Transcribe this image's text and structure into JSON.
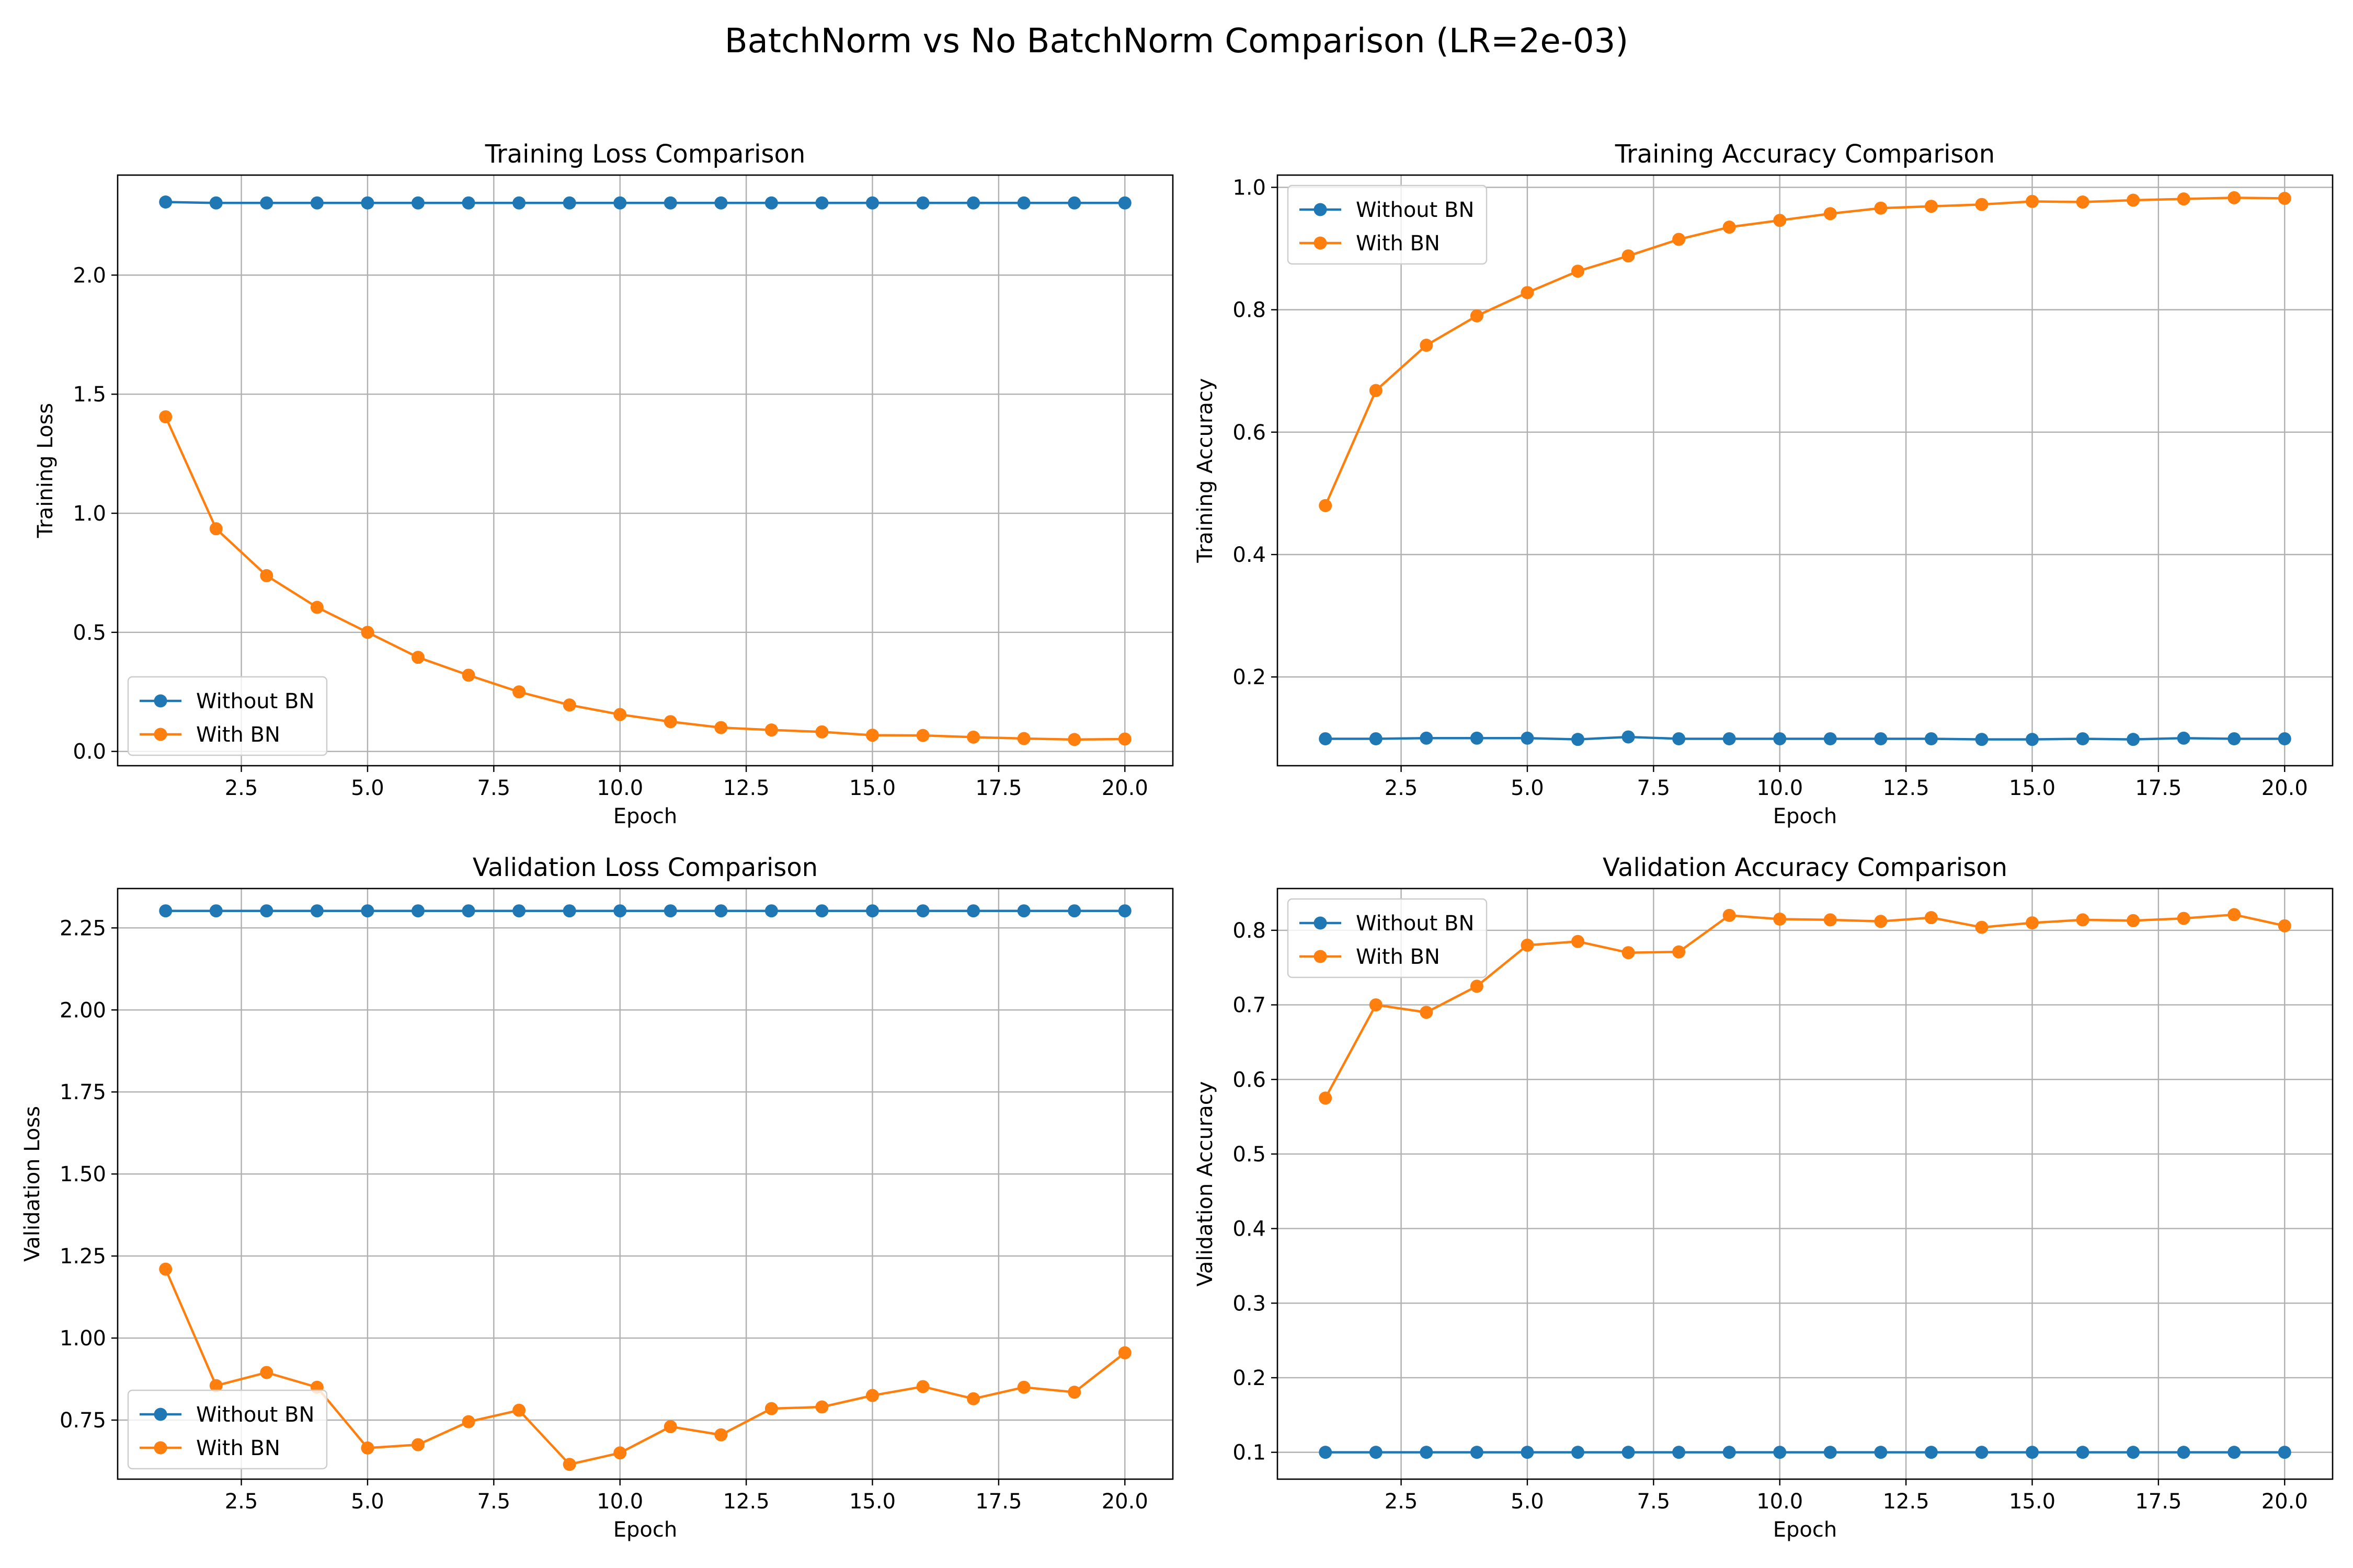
{
  "figure": {
    "title": "BatchNorm vs No BatchNorm Comparison (LR=2e-03)"
  },
  "colors": {
    "without_bn": "#1f77b4",
    "with_bn": "#ff7f0e",
    "grid": "#b0b0b0"
  },
  "chart_data": [
    {
      "type": "line",
      "title": "Training Loss Comparison",
      "xlabel": "Epoch",
      "ylabel": "Training Loss",
      "xlim": [
        0.05,
        20.95
      ],
      "ylim": [
        -0.06,
        2.42
      ],
      "xticks": [
        2.5,
        5.0,
        7.5,
        10.0,
        12.5,
        15.0,
        17.5,
        20.0
      ],
      "xtick_labels": [
        "2.5",
        "5.0",
        "7.5",
        "10.0",
        "12.5",
        "15.0",
        "17.5",
        "20.0"
      ],
      "yticks": [
        0.0,
        0.5,
        1.0,
        1.5,
        2.0
      ],
      "ytick_labels": [
        "0.0",
        "0.5",
        "1.0",
        "1.5",
        "2.0"
      ],
      "grid": true,
      "legend": "lower-left",
      "x": [
        1,
        2,
        3,
        4,
        5,
        6,
        7,
        8,
        9,
        10,
        11,
        12,
        13,
        14,
        15,
        16,
        17,
        18,
        19,
        20
      ],
      "series": [
        {
          "name": "Without BN",
          "values": [
            2.307,
            2.303,
            2.303,
            2.303,
            2.303,
            2.303,
            2.303,
            2.303,
            2.303,
            2.303,
            2.303,
            2.303,
            2.303,
            2.303,
            2.303,
            2.303,
            2.303,
            2.303,
            2.303,
            2.303
          ]
        },
        {
          "name": "With BN",
          "values": [
            1.405,
            0.935,
            0.738,
            0.605,
            0.5,
            0.395,
            0.32,
            0.25,
            0.195,
            0.155,
            0.125,
            0.1,
            0.09,
            0.082,
            0.068,
            0.067,
            0.06,
            0.054,
            0.05,
            0.052
          ]
        }
      ]
    },
    {
      "type": "line",
      "title": "Training Accuracy Comparison",
      "xlabel": "Epoch",
      "ylabel": "Training Accuracy",
      "xlim": [
        0.05,
        20.95
      ],
      "ylim": [
        0.055,
        1.02
      ],
      "xticks": [
        2.5,
        5.0,
        7.5,
        10.0,
        12.5,
        15.0,
        17.5,
        20.0
      ],
      "xtick_labels": [
        "2.5",
        "5.0",
        "7.5",
        "10.0",
        "12.5",
        "15.0",
        "17.5",
        "20.0"
      ],
      "yticks": [
        0.2,
        0.4,
        0.6,
        0.8,
        1.0
      ],
      "ytick_labels": [
        "0.2",
        "0.4",
        "0.6",
        "0.8",
        "1.0"
      ],
      "grid": true,
      "legend": "upper-left",
      "x": [
        1,
        2,
        3,
        4,
        5,
        6,
        7,
        8,
        9,
        10,
        11,
        12,
        13,
        14,
        15,
        16,
        17,
        18,
        19,
        20
      ],
      "series": [
        {
          "name": "Without BN",
          "values": [
            0.099,
            0.099,
            0.1,
            0.1,
            0.1,
            0.098,
            0.102,
            0.099,
            0.099,
            0.099,
            0.099,
            0.099,
            0.099,
            0.098,
            0.098,
            0.099,
            0.098,
            0.1,
            0.099,
            0.099
          ]
        },
        {
          "name": "With BN",
          "values": [
            0.48,
            0.668,
            0.742,
            0.79,
            0.828,
            0.863,
            0.888,
            0.915,
            0.935,
            0.946,
            0.957,
            0.966,
            0.969,
            0.972,
            0.977,
            0.976,
            0.979,
            0.981,
            0.983,
            0.982
          ]
        }
      ]
    },
    {
      "type": "line",
      "title": "Validation Loss Comparison",
      "xlabel": "Epoch",
      "ylabel": "Validation Loss",
      "xlim": [
        0.05,
        20.95
      ],
      "ylim": [
        0.57,
        2.37
      ],
      "xticks": [
        2.5,
        5.0,
        7.5,
        10.0,
        12.5,
        15.0,
        17.5,
        20.0
      ],
      "xtick_labels": [
        "2.5",
        "5.0",
        "7.5",
        "10.0",
        "12.5",
        "15.0",
        "17.5",
        "20.0"
      ],
      "yticks": [
        0.75,
        1.0,
        1.25,
        1.5,
        1.75,
        2.0,
        2.25
      ],
      "ytick_labels": [
        "0.75",
        "1.00",
        "1.25",
        "1.50",
        "1.75",
        "2.00",
        "2.25"
      ],
      "grid": true,
      "legend": "lower-left",
      "x": [
        1,
        2,
        3,
        4,
        5,
        6,
        7,
        8,
        9,
        10,
        11,
        12,
        13,
        14,
        15,
        16,
        17,
        18,
        19,
        20
      ],
      "series": [
        {
          "name": "Without BN",
          "values": [
            2.302,
            2.302,
            2.302,
            2.302,
            2.302,
            2.302,
            2.302,
            2.302,
            2.302,
            2.302,
            2.302,
            2.302,
            2.302,
            2.302,
            2.302,
            2.302,
            2.302,
            2.302,
            2.302,
            2.302
          ]
        },
        {
          "name": "With BN",
          "values": [
            1.21,
            0.855,
            0.895,
            0.85,
            0.665,
            0.675,
            0.745,
            0.78,
            0.615,
            0.65,
            0.73,
            0.705,
            0.785,
            0.79,
            0.825,
            0.852,
            0.815,
            0.85,
            0.835,
            0.955
          ]
        }
      ]
    },
    {
      "type": "line",
      "title": "Validation Accuracy Comparison",
      "xlabel": "Epoch",
      "ylabel": "Validation Accuracy",
      "xlim": [
        0.05,
        20.95
      ],
      "ylim": [
        0.064,
        0.856
      ],
      "xticks": [
        2.5,
        5.0,
        7.5,
        10.0,
        12.5,
        15.0,
        17.5,
        20.0
      ],
      "xtick_labels": [
        "2.5",
        "5.0",
        "7.5",
        "10.0",
        "12.5",
        "15.0",
        "17.5",
        "20.0"
      ],
      "yticks": [
        0.1,
        0.2,
        0.3,
        0.4,
        0.5,
        0.6,
        0.7,
        0.8
      ],
      "ytick_labels": [
        "0.1",
        "0.2",
        "0.3",
        "0.4",
        "0.5",
        "0.6",
        "0.7",
        "0.8"
      ],
      "grid": true,
      "legend": "upper-left",
      "x": [
        1,
        2,
        3,
        4,
        5,
        6,
        7,
        8,
        9,
        10,
        11,
        12,
        13,
        14,
        15,
        16,
        17,
        18,
        19,
        20
      ],
      "series": [
        {
          "name": "Without BN",
          "values": [
            0.1,
            0.1,
            0.1,
            0.1,
            0.1,
            0.1,
            0.1,
            0.1,
            0.1,
            0.1,
            0.1,
            0.1,
            0.1,
            0.1,
            0.1,
            0.1,
            0.1,
            0.1,
            0.1,
            0.1
          ]
        },
        {
          "name": "With BN",
          "values": [
            0.575,
            0.7,
            0.69,
            0.725,
            0.78,
            0.785,
            0.77,
            0.771,
            0.82,
            0.815,
            0.814,
            0.812,
            0.817,
            0.804,
            0.81,
            0.814,
            0.813,
            0.816,
            0.821,
            0.806
          ]
        }
      ]
    }
  ]
}
